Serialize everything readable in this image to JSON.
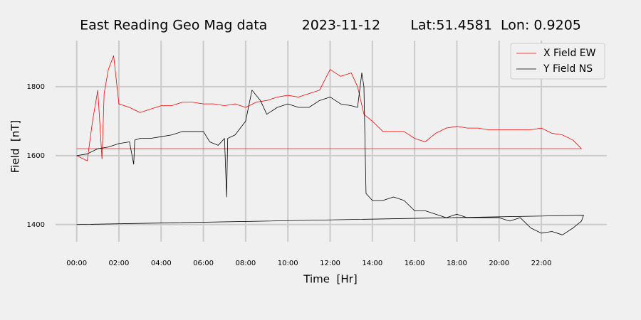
{
  "chart_data": {
    "type": "line",
    "title": "East Reading Geo Mag data        2023-11-12       Lat:51.4581  Lon: 0.9205",
    "xlabel": "Time  [Hr]",
    "ylabel": "Field  [nT]",
    "xlim": [
      -1.0,
      25.1
    ],
    "ylim": [
      1350,
      1934
    ],
    "xticks": [
      {
        "value": 0,
        "label": "00:00"
      },
      {
        "value": 2,
        "label": "02:00"
      },
      {
        "value": 4,
        "label": "04:00"
      },
      {
        "value": 6,
        "label": "06:00"
      },
      {
        "value": 8,
        "label": "08:00"
      },
      {
        "value": 10,
        "label": "10:00"
      },
      {
        "value": 12,
        "label": "12:00"
      },
      {
        "value": 14,
        "label": "14:00"
      },
      {
        "value": 16,
        "label": "16:00"
      },
      {
        "value": 18,
        "label": "18:00"
      },
      {
        "value": 20,
        "label": "20:00"
      },
      {
        "value": 22,
        "label": "22:00"
      }
    ],
    "yticks": [
      1400,
      1600,
      1800
    ],
    "grid": true,
    "legend": "upper right",
    "series": [
      {
        "name": "X Field EW",
        "color": "#ff0000",
        "x": [
          0,
          0.5,
          0.75,
          1,
          1.2,
          1.3,
          1.5,
          1.75,
          2,
          2.5,
          3,
          3.5,
          4,
          4.5,
          5,
          5.5,
          6,
          6.5,
          7,
          7.5,
          8,
          8.5,
          9,
          9.5,
          10,
          10.5,
          11,
          11.5,
          12,
          12.5,
          13,
          13.3,
          13.6,
          14,
          14.5,
          15,
          15.5,
          16,
          16.5,
          17,
          17.5,
          18,
          18.5,
          19,
          19.5,
          20,
          20.5,
          21,
          21.5,
          22,
          22.5,
          23,
          23.5,
          23.9,
          0
        ],
        "values": [
          1600,
          1585,
          1700,
          1790,
          1590,
          1780,
          1850,
          1890,
          1750,
          1740,
          1725,
          1735,
          1745,
          1745,
          1755,
          1755,
          1750,
          1750,
          1745,
          1750,
          1740,
          1755,
          1760,
          1770,
          1775,
          1770,
          1780,
          1790,
          1850,
          1830,
          1840,
          1800,
          1720,
          1700,
          1670,
          1670,
          1670,
          1650,
          1640,
          1665,
          1680,
          1685,
          1680,
          1680,
          1675,
          1675,
          1675,
          1675,
          1675,
          1680,
          1665,
          1660,
          1645,
          1620,
          1620
        ]
      },
      {
        "name": "Y Field NS",
        "color": "#000000",
        "x": [
          0,
          0.5,
          1,
          1.5,
          2,
          2.5,
          2.7,
          2.75,
          3,
          3.5,
          4,
          4.5,
          5,
          5.5,
          6,
          6.3,
          6.7,
          7,
          7.1,
          7.15,
          7.5,
          8,
          8.3,
          8.7,
          9,
          9.5,
          10,
          10.5,
          11,
          11.5,
          12,
          12.5,
          13,
          13.3,
          13.5,
          13.6,
          13.7,
          14,
          14.5,
          15,
          15.5,
          16,
          16.5,
          17,
          17.5,
          18,
          18.5,
          19,
          19.5,
          20,
          20.5,
          21,
          21.5,
          22,
          22.5,
          23,
          23.5,
          23.9,
          24,
          0
        ],
        "values": [
          1600,
          1605,
          1620,
          1625,
          1635,
          1640,
          1575,
          1645,
          1650,
          1650,
          1655,
          1660,
          1670,
          1670,
          1670,
          1640,
          1630,
          1650,
          1480,
          1650,
          1660,
          1700,
          1790,
          1760,
          1720,
          1740,
          1750,
          1740,
          1740,
          1760,
          1770,
          1750,
          1745,
          1740,
          1840,
          1800,
          1490,
          1470,
          1470,
          1480,
          1470,
          1440,
          1440,
          1430,
          1420,
          1430,
          1420,
          1420,
          1420,
          1420,
          1410,
          1420,
          1390,
          1375,
          1380,
          1370,
          1390,
          1410,
          1427,
          1400
        ]
      }
    ]
  }
}
